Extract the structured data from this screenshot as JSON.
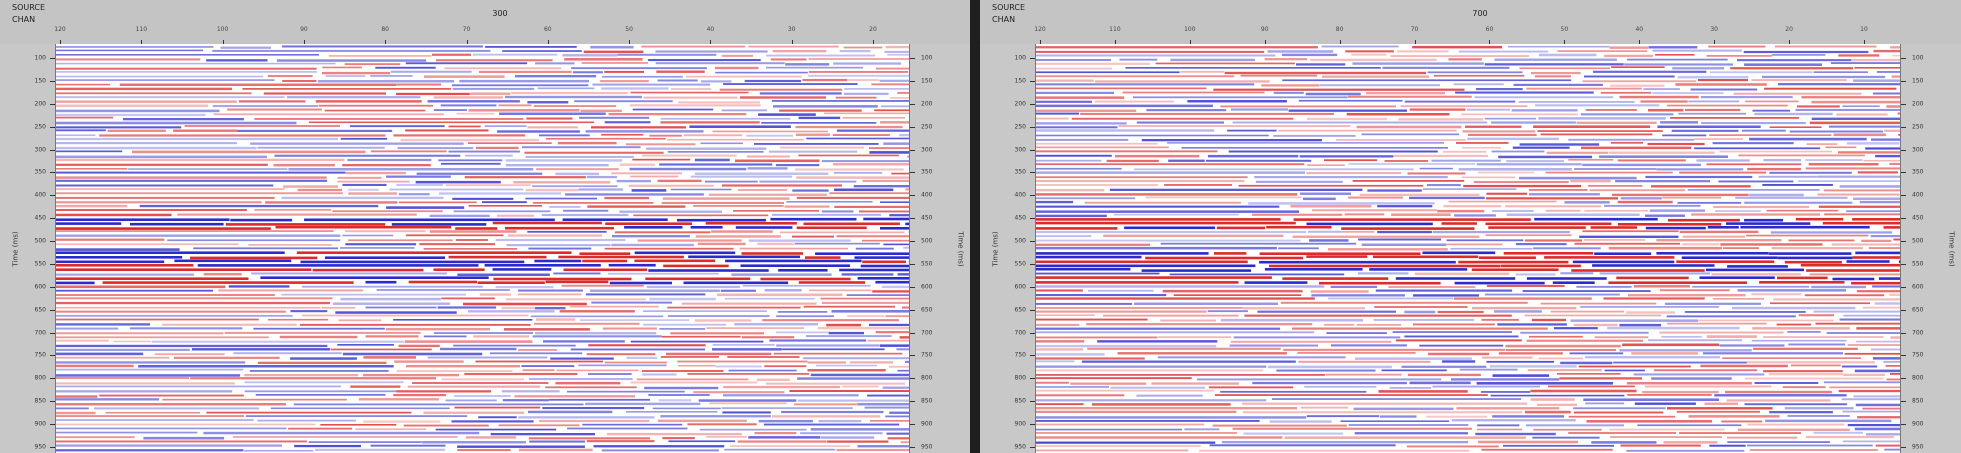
{
  "left_panel": {
    "source_label": "SOURCE",
    "chan_label": "CHAN",
    "source_value": "300",
    "chan_ticks": [
      "120",
      "110",
      "100",
      "90",
      "80",
      "70",
      "60",
      "50",
      "40",
      "30",
      "20"
    ],
    "time_label": "Time (ms)",
    "time_ticks": [
      "100",
      "150",
      "200",
      "250",
      "300",
      "350",
      "400",
      "450",
      "500",
      "550",
      "600",
      "650",
      "700",
      "750",
      "800",
      "850",
      "900",
      "950"
    ]
  },
  "right_panel": {
    "source_label": "SOURCE",
    "chan_label": "CHAN",
    "source_value": "700",
    "chan_ticks": [
      "120",
      "110",
      "100",
      "90",
      "80",
      "70",
      "60",
      "50",
      "40",
      "30",
      "20",
      "10"
    ],
    "time_label": "Time (ms)",
    "time_ticks": [
      "100",
      "150",
      "200",
      "250",
      "300",
      "350",
      "400",
      "450",
      "500",
      "550",
      "600",
      "650",
      "700",
      "750",
      "800",
      "850",
      "900",
      "950"
    ]
  },
  "colors": {
    "positive": "#d92020",
    "negative": "#2020c8",
    "background": "#ffffff"
  }
}
